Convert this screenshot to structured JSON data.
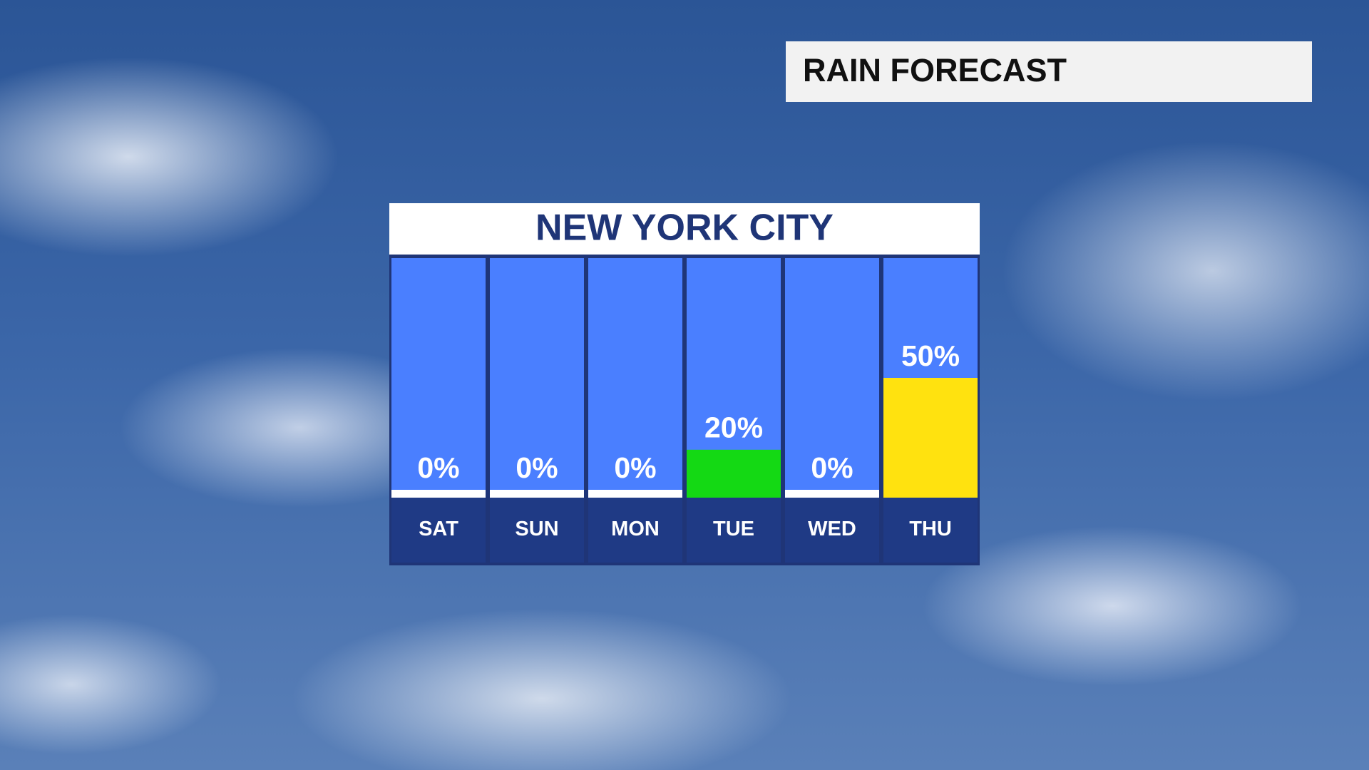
{
  "header": {
    "title": "RAIN FORECAST"
  },
  "chart_data": {
    "type": "bar",
    "title": "NEW YORK CITY",
    "categories": [
      "SAT",
      "SUN",
      "MON",
      "TUE",
      "WED",
      "THU"
    ],
    "values": [
      0,
      0,
      0,
      20,
      0,
      50
    ],
    "value_labels": [
      "0%",
      "0%",
      "0%",
      "20%",
      "0%",
      "50%"
    ],
    "colors": [
      "#ffffff",
      "#ffffff",
      "#ffffff",
      "#14d914",
      "#ffffff",
      "#ffe20f"
    ],
    "ylim": [
      0,
      100
    ]
  }
}
